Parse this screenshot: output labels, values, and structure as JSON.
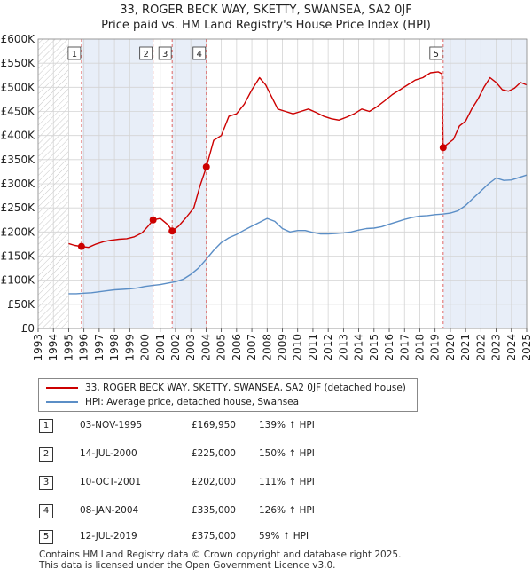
{
  "title": {
    "line1": "33, ROGER BECK WAY, SKETTY, SWANSEA, SA2 0JF",
    "line2": "Price paid vs. HM Land Registry's House Price Index (HPI)"
  },
  "legend": {
    "property_label": "33, ROGER BECK WAY, SKETTY, SWANSEA, SA2 0JF (detached house)",
    "hpi_label": "HPI: Average price, detached house, Swansea"
  },
  "colors": {
    "property": "#cc0000",
    "hpi": "#5b8ec6",
    "shade": "#e8eef8",
    "vline": "#e06666"
  },
  "sales": [
    {
      "num": "1",
      "date": "03-NOV-1995",
      "price": "£169,950",
      "hpi": "139% ↑ HPI"
    },
    {
      "num": "2",
      "date": "14-JUL-2000",
      "price": "£225,000",
      "hpi": "150% ↑ HPI"
    },
    {
      "num": "3",
      "date": "10-OCT-2001",
      "price": "£202,000",
      "hpi": "111% ↑ HPI"
    },
    {
      "num": "4",
      "date": "08-JAN-2004",
      "price": "£335,000",
      "hpi": "126% ↑ HPI"
    },
    {
      "num": "5",
      "date": "12-JUL-2019",
      "price": "£375,000",
      "hpi": "59% ↑ HPI"
    }
  ],
  "footer": {
    "line1": "Contains HM Land Registry data © Crown copyright and database right 2025.",
    "line2": "This data is licensed under the Open Government Licence v3.0."
  },
  "chart_data": {
    "type": "line",
    "title": "33, ROGER BECK WAY, SKETTY, SWANSEA, SA2 0JF",
    "subtitle": "Price paid vs. HM Land Registry's House Price Index (HPI)",
    "xlim": [
      1993,
      2025
    ],
    "ylim": [
      0,
      600000
    ],
    "grid": true,
    "legend_position": "bottom",
    "x_ticks": [
      "1993",
      "1994",
      "1995",
      "1996",
      "1997",
      "1998",
      "1999",
      "2000",
      "2001",
      "2002",
      "2003",
      "2004",
      "2005",
      "2006",
      "2007",
      "2008",
      "2009",
      "2010",
      "2011",
      "2012",
      "2013",
      "2014",
      "2015",
      "2016",
      "2017",
      "2018",
      "2019",
      "2020",
      "2021",
      "2022",
      "2023",
      "2024",
      "2025"
    ],
    "y_ticks": [
      {
        "value": 0,
        "label": "£0"
      },
      {
        "value": 50000,
        "label": "£50K"
      },
      {
        "value": 100000,
        "label": "£100K"
      },
      {
        "value": 150000,
        "label": "£150K"
      },
      {
        "value": 200000,
        "label": "£200K"
      },
      {
        "value": 250000,
        "label": "£250K"
      },
      {
        "value": 300000,
        "label": "£300K"
      },
      {
        "value": 350000,
        "label": "£350K"
      },
      {
        "value": 400000,
        "label": "£400K"
      },
      {
        "value": 450000,
        "label": "£450K"
      },
      {
        "value": 500000,
        "label": "£500K"
      },
      {
        "value": 550000,
        "label": "£550K"
      },
      {
        "value": 600000,
        "label": "£600K"
      }
    ],
    "hatched_until": 1995.0,
    "shaded_from": 2025.0,
    "sale_points": [
      {
        "num": "1",
        "x": 1995.84,
        "y": 169950
      },
      {
        "num": "2",
        "x": 2000.53,
        "y": 225000
      },
      {
        "num": "3",
        "x": 2001.78,
        "y": 202000
      },
      {
        "num": "4",
        "x": 2004.02,
        "y": 335000
      },
      {
        "num": "5",
        "x": 2019.53,
        "y": 375000
      }
    ],
    "series": [
      {
        "name": "33, ROGER BECK WAY, SKETTY, SWANSEA, SA2 0JF (detached house)",
        "x": [
          1995.0,
          1995.4,
          1995.84,
          1996.3,
          1996.8,
          1997.3,
          1997.8,
          1998.3,
          1998.8,
          1999.3,
          1999.8,
          2000.2,
          2000.53,
          2001.0,
          2001.5,
          2001.78,
          2002.2,
          2002.7,
          2003.2,
          2003.6,
          2004.02,
          2004.5,
          2005.0,
          2005.5,
          2006.0,
          2006.5,
          2007.0,
          2007.5,
          2007.9,
          2008.3,
          2008.7,
          2009.2,
          2009.7,
          2010.2,
          2010.7,
          2011.2,
          2011.7,
          2012.2,
          2012.7,
          2013.2,
          2013.7,
          2014.2,
          2014.7,
          2015.2,
          2015.7,
          2016.2,
          2016.7,
          2017.2,
          2017.7,
          2018.2,
          2018.7,
          2019.2,
          2019.45,
          2019.53,
          2019.8,
          2020.2,
          2020.6,
          2021.0,
          2021.4,
          2021.8,
          2022.2,
          2022.6,
          2023.0,
          2023.4,
          2023.8,
          2024.2,
          2024.6,
          2025.0
        ],
        "values": [
          176000,
          172000,
          169950,
          168000,
          175000,
          180000,
          183000,
          185000,
          186000,
          190000,
          198000,
          212000,
          225000,
          228000,
          215000,
          202000,
          212000,
          230000,
          250000,
          295000,
          335000,
          390000,
          400000,
          440000,
          445000,
          465000,
          495000,
          520000,
          505000,
          480000,
          455000,
          450000,
          445000,
          450000,
          455000,
          448000,
          440000,
          435000,
          432000,
          438000,
          445000,
          455000,
          450000,
          460000,
          472000,
          485000,
          495000,
          505000,
          515000,
          520000,
          530000,
          532000,
          528000,
          375000,
          382000,
          392000,
          420000,
          430000,
          455000,
          475000,
          500000,
          520000,
          510000,
          495000,
          492000,
          498000,
          510000,
          505000
        ]
      },
      {
        "name": "HPI: Average price, detached house, Swansea",
        "x": [
          1995.0,
          1995.5,
          1996.0,
          1996.5,
          1997.0,
          1997.5,
          1998.0,
          1998.5,
          1999.0,
          1999.5,
          2000.0,
          2000.5,
          2001.0,
          2001.5,
          2002.0,
          2002.5,
          2003.0,
          2003.5,
          2004.0,
          2004.5,
          2005.0,
          2005.5,
          2006.0,
          2006.5,
          2007.0,
          2007.5,
          2008.0,
          2008.5,
          2009.0,
          2009.5,
          2010.0,
          2010.5,
          2011.0,
          2011.5,
          2012.0,
          2012.5,
          2013.0,
          2013.5,
          2014.0,
          2014.5,
          2015.0,
          2015.5,
          2016.0,
          2016.5,
          2017.0,
          2017.5,
          2018.0,
          2018.5,
          2019.0,
          2019.5,
          2020.0,
          2020.5,
          2021.0,
          2021.5,
          2022.0,
          2022.5,
          2023.0,
          2023.5,
          2024.0,
          2024.5,
          2025.0
        ],
        "values": [
          72000,
          72000,
          73000,
          74000,
          76000,
          78000,
          80000,
          81000,
          82000,
          84000,
          87000,
          89000,
          91000,
          94000,
          97000,
          102000,
          112000,
          125000,
          143000,
          162000,
          178000,
          188000,
          195000,
          204000,
          212000,
          220000,
          228000,
          222000,
          207000,
          200000,
          203000,
          203000,
          199000,
          196000,
          196000,
          197000,
          198000,
          200000,
          204000,
          207000,
          208000,
          211000,
          216000,
          221000,
          226000,
          230000,
          233000,
          234000,
          236000,
          237000,
          239000,
          244000,
          255000,
          270000,
          285000,
          300000,
          312000,
          307000,
          308000,
          313000,
          318000
        ]
      }
    ]
  }
}
